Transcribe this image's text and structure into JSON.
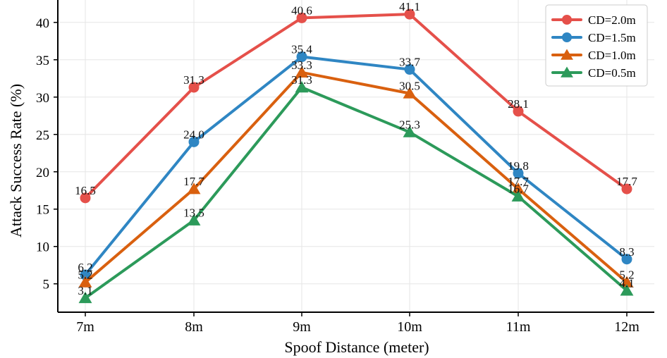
{
  "chart_data": {
    "type": "line",
    "title": "",
    "xlabel": "Spoof Distance (meter)",
    "ylabel": "Attack Success Rate (%)",
    "categories": [
      "7m",
      "8m",
      "9m",
      "10m",
      "11m",
      "12m"
    ],
    "ylim": [
      1.2,
      43.0
    ],
    "yticks": [
      5,
      10,
      15,
      20,
      25,
      30,
      35,
      40
    ],
    "grid": true,
    "legend_position": "top-right",
    "series": [
      {
        "name": "CD=2.0m",
        "color": "#e5504a",
        "marker": "circle",
        "values": [
          16.5,
          31.3,
          40.6,
          41.1,
          28.1,
          17.7
        ]
      },
      {
        "name": "CD=1.5m",
        "color": "#2f86c3",
        "marker": "circle",
        "values": [
          6.2,
          24.0,
          35.4,
          33.7,
          19.8,
          8.3
        ]
      },
      {
        "name": "CD=1.0m",
        "color": "#d9600f",
        "marker": "triangle",
        "values": [
          5.2,
          17.7,
          33.3,
          30.5,
          17.7,
          5.2
        ]
      },
      {
        "name": "CD=0.5m",
        "color": "#2c9a5a",
        "marker": "triangle",
        "values": [
          3.1,
          13.5,
          31.3,
          25.3,
          16.7,
          4.1
        ]
      }
    ]
  }
}
